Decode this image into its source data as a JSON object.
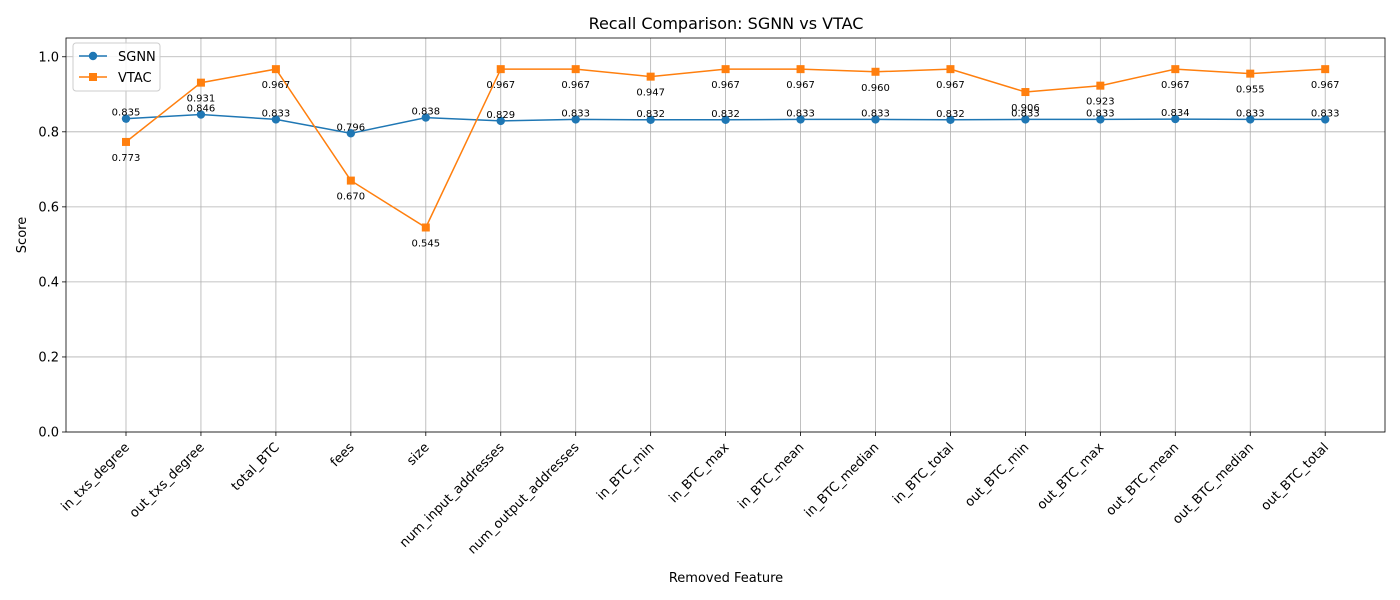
{
  "chart_data": {
    "type": "line",
    "title": "Recall Comparison: SGNN vs VTAC",
    "xlabel": "Removed Feature",
    "ylabel": "Score",
    "ylim": [
      0,
      1.05
    ],
    "yticks": [
      0.0,
      0.2,
      0.4,
      0.6,
      0.8,
      1.0
    ],
    "ytick_labels": [
      "0.0",
      "0.2",
      "0.4",
      "0.6",
      "0.8",
      "1.0"
    ],
    "grid": true,
    "legend_position": "top-left",
    "categories": [
      "in_txs_degree",
      "out_txs_degree",
      "total_BTC",
      "fees",
      "size",
      "num_input_addresses",
      "num_output_addresses",
      "in_BTC_min",
      "in_BTC_max",
      "in_BTC_mean",
      "in_BTC_median",
      "in_BTC_total",
      "out_BTC_min",
      "out_BTC_max",
      "out_BTC_mean",
      "out_BTC_median",
      "out_BTC_total"
    ],
    "series": [
      {
        "name": "SGNN",
        "color": "#1f77b4",
        "marker": "circle",
        "values": [
          0.835,
          0.846,
          0.833,
          0.796,
          0.838,
          0.829,
          0.833,
          0.832,
          0.832,
          0.833,
          0.833,
          0.832,
          0.833,
          0.833,
          0.834,
          0.833,
          0.833
        ],
        "labels": [
          "0.835",
          "0.846",
          "0.833",
          "0.796",
          "0.838",
          "0.829",
          "0.833",
          "0.832",
          "0.832",
          "0.833",
          "0.833",
          "0.832",
          "0.833",
          "0.833",
          "0.834",
          "0.833",
          "0.833"
        ]
      },
      {
        "name": "VTAC",
        "color": "#ff7f0e",
        "marker": "square",
        "values": [
          0.773,
          0.931,
          0.967,
          0.67,
          0.545,
          0.967,
          0.967,
          0.947,
          0.967,
          0.967,
          0.96,
          0.967,
          0.906,
          0.923,
          0.967,
          0.955,
          0.967
        ],
        "labels": [
          "0.773",
          "0.931",
          "0.967",
          "0.670",
          "0.545",
          "0.967",
          "0.967",
          "0.947",
          "0.967",
          "0.967",
          "0.960",
          "0.967",
          "0.906",
          "0.923",
          "0.967",
          "0.955",
          "0.967"
        ]
      }
    ]
  }
}
